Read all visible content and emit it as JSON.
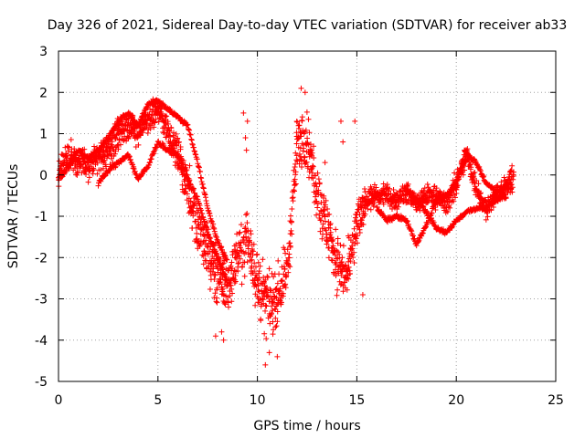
{
  "chart_data": {
    "type": "scatter",
    "title": "Day 326 of 2021, Sidereal Day-to-day VTEC variation (SDTVAR) for receiver ab33",
    "xlabel": "GPS time / hours",
    "ylabel": "SDTVAR / TECUs",
    "xlim": [
      0,
      25
    ],
    "ylim": [
      -5,
      3
    ],
    "xticks": [
      0,
      5,
      10,
      15,
      20,
      25
    ],
    "xtick_labels": [
      "0",
      "5",
      "10",
      "15",
      "20",
      "25"
    ],
    "yticks": [
      -5,
      -4,
      -3,
      -2,
      -1,
      0,
      1,
      2,
      3
    ],
    "ytick_labels": [
      "-5",
      "-4",
      "-3",
      "-2",
      "-1",
      "0",
      "1",
      "2",
      "3"
    ],
    "grid": true,
    "marker": "+",
    "color": "#ff0000",
    "series": [
      {
        "name": "SDTVAR",
        "trend": {
          "x": [
            0.0,
            0.3,
            0.6,
            1.0,
            1.5,
            2.0,
            2.5,
            3.0,
            3.5,
            4.0,
            4.5,
            5.0,
            5.5,
            6.0,
            6.5,
            7.0,
            7.5,
            8.0,
            8.5,
            9.0,
            9.5,
            10.0,
            10.5,
            11.0,
            11.5,
            12.0,
            12.5,
            13.0,
            13.5,
            14.0,
            14.5,
            15.0,
            15.5,
            16.0,
            16.5,
            17.0,
            17.5,
            18.0,
            18.5,
            19.0,
            19.5,
            20.0,
            20.5,
            21.0,
            21.5,
            22.0,
            22.5,
            22.9
          ],
          "y": [
            0.0,
            0.4,
            0.5,
            0.3,
            0.2,
            0.4,
            0.6,
            1.0,
            1.2,
            1.0,
            1.4,
            1.6,
            1.1,
            0.5,
            -0.3,
            -1.3,
            -1.9,
            -2.4,
            -2.7,
            -2.0,
            -1.5,
            -2.6,
            -3.2,
            -2.9,
            -2.3,
            0.8,
            0.9,
            -0.4,
            -1.3,
            -2.1,
            -2.5,
            -1.2,
            -0.6,
            -0.5,
            -0.5,
            -0.6,
            -0.4,
            -0.7,
            -0.5,
            -0.5,
            -0.7,
            -0.2,
            0.5,
            -0.3,
            -0.8,
            -0.5,
            -0.3,
            -0.1
          ]
        },
        "spread": [
          0.45,
          0.55,
          0.55,
          0.5,
          0.5,
          0.5,
          0.55,
          0.6,
          0.55,
          0.5,
          0.45,
          0.45,
          0.5,
          0.6,
          0.8,
          0.9,
          1.1,
          1.2,
          1.1,
          1.0,
          0.9,
          1.1,
          1.1,
          1.0,
          0.9,
          1.0,
          1.0,
          1.0,
          1.0,
          1.0,
          1.0,
          0.8,
          0.45,
          0.35,
          0.35,
          0.35,
          0.35,
          0.35,
          0.4,
          0.4,
          0.4,
          0.45,
          0.45,
          0.4,
          0.35,
          0.35,
          0.35,
          0.45
        ],
        "bands": [
          {
            "x": [
              0.0,
              0.5,
              1.0,
              1.5,
              2.0,
              2.5,
              3.0,
              3.5,
              4.0,
              4.5,
              5.0,
              5.5,
              6.0,
              6.5,
              7.0,
              7.5,
              8.0,
              8.5
            ],
            "y": [
              -0.1,
              0.2,
              0.6,
              0.4,
              0.6,
              0.9,
              1.3,
              1.5,
              1.2,
              1.7,
              1.8,
              1.6,
              1.4,
              1.2,
              0.3,
              -0.8,
              -1.6,
              -2.1
            ]
          },
          {
            "x": [
              2.0,
              2.5,
              3.0,
              3.5,
              4.0,
              4.5,
              5.0,
              5.5,
              6.0,
              6.5,
              7.0,
              7.5,
              8.0,
              8.5
            ],
            "y": [
              -0.2,
              0.1,
              0.3,
              0.5,
              -0.1,
              0.2,
              0.8,
              0.6,
              0.5,
              -0.1,
              -0.6,
              -1.4,
              -2.0,
              -2.6
            ]
          },
          {
            "x": [
              16.0,
              16.5,
              17.0,
              17.5,
              18.0,
              18.5,
              19.0,
              19.5,
              20.0,
              20.5,
              21.0,
              21.5,
              22.0,
              22.5,
              22.8
            ],
            "y": [
              -0.8,
              -1.1,
              -1.0,
              -1.1,
              -1.7,
              -1.2,
              -0.6,
              -0.5,
              -0.2,
              0.5,
              0.3,
              -0.2,
              -0.4,
              -0.3,
              0.2
            ]
          },
          {
            "x": [
              17.5,
              18.0,
              18.5,
              19.0,
              19.5,
              20.0,
              20.5,
              21.0,
              21.5,
              22.0,
              22.5
            ],
            "y": [
              -0.4,
              -0.6,
              -0.9,
              -1.3,
              -1.4,
              -1.1,
              -0.9,
              -0.8,
              -0.8,
              -0.6,
              -0.5
            ]
          }
        ],
        "outliers": {
          "x": [
            9.3,
            9.4,
            9.45,
            9.5,
            13.4,
            14.2,
            14.3,
            14.9,
            15.3,
            12.2,
            12.4,
            10.4,
            10.6,
            11.0,
            8.2,
            8.3,
            7.9
          ],
          "y": [
            1.5,
            0.9,
            0.6,
            1.3,
            0.3,
            1.3,
            0.8,
            1.3,
            -2.9,
            2.1,
            2.0,
            -4.6,
            -4.3,
            -4.4,
            -3.8,
            -4.0,
            -3.9
          ]
        }
      }
    ]
  }
}
